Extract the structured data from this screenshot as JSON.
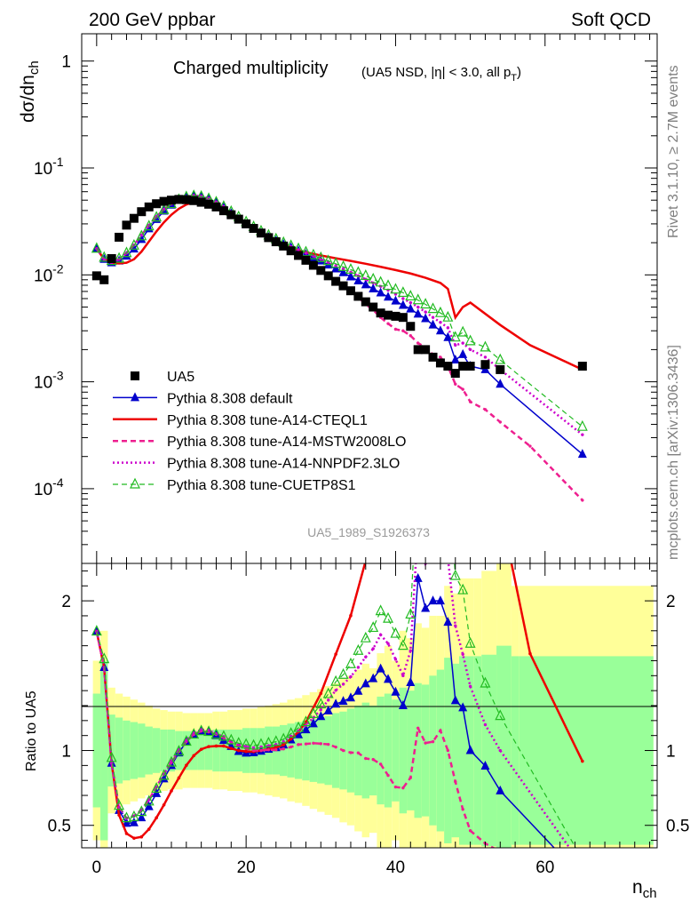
{
  "header": {
    "left": "200 GeV ppbar",
    "right": "Soft QCD"
  },
  "side_labels": {
    "rivet": "Rivet 3.1.10, ≥ 2.7M events",
    "mcplots": "mcplots.cern.ch [arXiv:1306.3436]"
  },
  "watermark": "UA5_1989_S1926373",
  "chart_data": [
    {
      "type": "scatter",
      "title": "Charged multiplicity",
      "subtitle": "(UA5 NSD, |η| < 3.0, all p_T)",
      "ylabel": "dσ/dn_ch",
      "xlabel": "n_ch",
      "xlim": [
        -2,
        75
      ],
      "ylim": [
        2e-05,
        1.8
      ],
      "yscale": "log",
      "x_ticks": [
        "0",
        "20",
        "40",
        "60"
      ],
      "y_ticks": [
        "10^-4",
        "10^-3",
        "10^-2",
        "10^-1",
        "1"
      ],
      "legend_position": "lower-left",
      "series": [
        {
          "name": "UA5",
          "marker": "filled-square",
          "color": "#000000",
          "x": [
            0,
            1,
            2,
            3,
            4,
            5,
            6,
            7,
            8,
            9,
            10,
            11,
            12,
            13,
            14,
            15,
            16,
            17,
            18,
            19,
            20,
            21,
            22,
            23,
            24,
            25,
            26,
            27,
            28,
            29,
            30,
            31,
            32,
            33,
            34,
            35,
            36,
            37,
            38,
            39,
            40,
            41,
            42,
            43,
            44,
            45,
            46,
            47,
            48,
            49,
            50,
            52,
            54,
            65
          ],
          "y": [
            0.0098,
            0.009,
            0.0142,
            0.0225,
            0.0292,
            0.0338,
            0.039,
            0.0432,
            0.0463,
            0.0487,
            0.05,
            0.0508,
            0.0505,
            0.0495,
            0.0478,
            0.0458,
            0.0432,
            0.0398,
            0.0365,
            0.0332,
            0.03,
            0.0272,
            0.0246,
            0.0223,
            0.0204,
            0.0186,
            0.0168,
            0.0152,
            0.0137,
            0.0123,
            0.011,
            0.0098,
            0.0087,
            0.0079,
            0.0071,
            0.0063,
            0.0056,
            0.005,
            0.0044,
            0.0042,
            0.0041,
            0.004,
            0.0033,
            0.002,
            0.002,
            0.0017,
            0.0015,
            0.0014,
            0.0012,
            0.0014,
            0.0014,
            0.00145,
            0.0013,
            0.0014
          ]
        },
        {
          "name": "Pythia 8.308 default",
          "marker": "filled-triangle",
          "color": "#0000cc",
          "x": [
            0,
            1,
            2,
            3,
            4,
            5,
            6,
            7,
            8,
            9,
            10,
            11,
            12,
            13,
            14,
            15,
            16,
            17,
            18,
            19,
            20,
            21,
            22,
            23,
            24,
            25,
            26,
            27,
            28,
            29,
            30,
            31,
            32,
            33,
            34,
            35,
            36,
            37,
            38,
            39,
            40,
            41,
            42,
            43,
            44,
            45,
            46,
            47,
            48,
            49,
            50,
            52,
            54,
            65
          ],
          "y": [
            0.0176,
            0.014,
            0.013,
            0.0135,
            0.015,
            0.0175,
            0.0215,
            0.027,
            0.033,
            0.0395,
            0.045,
            0.05,
            0.0535,
            0.0548,
            0.054,
            0.0515,
            0.0475,
            0.0425,
            0.0375,
            0.033,
            0.0295,
            0.0268,
            0.0245,
            0.0225,
            0.0208,
            0.0193,
            0.018,
            0.0168,
            0.0156,
            0.0145,
            0.0135,
            0.0124,
            0.0114,
            0.0105,
            0.0096,
            0.0088,
            0.0081,
            0.0074,
            0.0068,
            0.0062,
            0.0057,
            0.0052,
            0.0048,
            0.0043,
            0.0039,
            0.0034,
            0.003,
            0.0026,
            0.0016,
            0.0018,
            0.0014,
            0.0013,
            0.00095,
            0.00021
          ]
        },
        {
          "name": "Pythia 8.308 tune-A14-CTEQL1",
          "marker": "line",
          "color": "#ee0000",
          "x": [
            0,
            1,
            2,
            3,
            4,
            5,
            6,
            7,
            8,
            9,
            10,
            11,
            12,
            13,
            14,
            15,
            16,
            17,
            18,
            19,
            20,
            21,
            22,
            23,
            24,
            25,
            26,
            27,
            28,
            30,
            32,
            34,
            36,
            38,
            40,
            42,
            44,
            46,
            47,
            48,
            49,
            50,
            54,
            58,
            65
          ],
          "y": [
            0.0176,
            0.014,
            0.013,
            0.0128,
            0.013,
            0.014,
            0.0165,
            0.0205,
            0.0255,
            0.031,
            0.0365,
            0.0415,
            0.0455,
            0.0478,
            0.0482,
            0.047,
            0.0445,
            0.041,
            0.037,
            0.0332,
            0.0298,
            0.027,
            0.0246,
            0.0225,
            0.0208,
            0.0193,
            0.0181,
            0.0171,
            0.0163,
            0.0152,
            0.0143,
            0.0135,
            0.0127,
            0.0119,
            0.0111,
            0.0103,
            0.0094,
            0.0084,
            0.0074,
            0.004,
            0.005,
            0.0055,
            0.0034,
            0.0022,
            0.0013
          ]
        },
        {
          "name": "Pythia 8.308 tune-A14-MSTW2008LO",
          "marker": "dashed",
          "color": "#ee1f8f",
          "x": [
            0,
            1,
            2,
            3,
            4,
            5,
            6,
            7,
            8,
            9,
            10,
            11,
            12,
            13,
            14,
            15,
            16,
            17,
            18,
            19,
            20,
            21,
            22,
            23,
            24,
            25,
            26,
            27,
            28,
            29,
            30,
            31,
            32,
            33,
            34,
            35,
            36,
            37,
            38,
            39,
            40,
            41,
            42,
            43,
            44,
            45,
            46,
            47,
            48,
            49,
            50,
            52,
            54,
            58,
            65
          ],
          "y": [
            0.0176,
            0.014,
            0.013,
            0.014,
            0.016,
            0.019,
            0.0235,
            0.029,
            0.035,
            0.041,
            0.046,
            0.0505,
            0.0535,
            0.0548,
            0.054,
            0.0515,
            0.0478,
            0.0432,
            0.0385,
            0.0342,
            0.0304,
            0.0272,
            0.0246,
            0.0224,
            0.0205,
            0.0188,
            0.0172,
            0.0158,
            0.0143,
            0.0129,
            0.0115,
            0.0102,
            0.0089,
            0.0079,
            0.007,
            0.0062,
            0.0053,
            0.0047,
            0.004,
            0.0035,
            0.0031,
            0.003,
            0.0027,
            0.0023,
            0.0021,
            0.0018,
            0.0017,
            0.0014,
            0.00095,
            0.00085,
            0.00065,
            0.00055,
            0.00042,
            0.00025,
            7.8e-05
          ]
        },
        {
          "name": "Pythia 8.308 tune-A14-NNPDF2.3LO",
          "marker": "dotted",
          "color": "#cc00cc",
          "x": [
            0,
            1,
            2,
            3,
            4,
            5,
            6,
            7,
            8,
            9,
            10,
            11,
            12,
            13,
            14,
            15,
            16,
            17,
            18,
            19,
            20,
            21,
            22,
            23,
            24,
            25,
            26,
            27,
            28,
            29,
            30,
            31,
            32,
            33,
            34,
            35,
            36,
            37,
            38,
            39,
            40,
            41,
            42,
            43,
            44,
            45,
            46,
            47,
            48,
            49,
            50,
            52,
            54,
            65
          ],
          "y": [
            0.0176,
            0.014,
            0.013,
            0.014,
            0.016,
            0.019,
            0.0235,
            0.029,
            0.035,
            0.041,
            0.0465,
            0.051,
            0.054,
            0.0553,
            0.0545,
            0.052,
            0.048,
            0.0435,
            0.0388,
            0.0345,
            0.0308,
            0.0277,
            0.0252,
            0.023,
            0.0212,
            0.0197,
            0.0184,
            0.0172,
            0.016,
            0.015,
            0.014,
            0.0131,
            0.0122,
            0.0114,
            0.0106,
            0.0098,
            0.0091,
            0.0084,
            0.0078,
            0.0072,
            0.0066,
            0.006,
            0.0055,
            0.005,
            0.0045,
            0.004,
            0.0036,
            0.0032,
            0.0022,
            0.0023,
            0.002,
            0.0017,
            0.0013,
            0.00032
          ]
        },
        {
          "name": "Pythia 8.308 tune-CUETP8S1",
          "marker": "open-triangle",
          "color": "#22bb22",
          "x": [
            0,
            1,
            2,
            3,
            4,
            5,
            6,
            7,
            8,
            9,
            10,
            11,
            12,
            13,
            14,
            15,
            16,
            17,
            18,
            19,
            20,
            21,
            22,
            23,
            24,
            25,
            26,
            27,
            28,
            29,
            30,
            31,
            32,
            33,
            34,
            35,
            36,
            37,
            38,
            39,
            40,
            41,
            42,
            43,
            44,
            45,
            46,
            47,
            48,
            49,
            50,
            52,
            54,
            65
          ],
          "y": [
            0.0176,
            0.0145,
            0.0135,
            0.0142,
            0.016,
            0.0188,
            0.023,
            0.0285,
            0.0345,
            0.0405,
            0.046,
            0.0505,
            0.0535,
            0.0548,
            0.054,
            0.0515,
            0.0478,
            0.0435,
            0.039,
            0.0348,
            0.0312,
            0.0281,
            0.0256,
            0.0234,
            0.0216,
            0.02,
            0.0187,
            0.0175,
            0.0163,
            0.0153,
            0.0144,
            0.0135,
            0.0127,
            0.0119,
            0.0112,
            0.0105,
            0.0098,
            0.0091,
            0.0085,
            0.0079,
            0.0073,
            0.0068,
            0.0063,
            0.0058,
            0.0053,
            0.0048,
            0.0044,
            0.004,
            0.0026,
            0.0029,
            0.0024,
            0.0021,
            0.0016,
            0.00038
          ]
        }
      ]
    },
    {
      "type": "line",
      "ylabel": "Ratio to UA5",
      "xlabel": "n_ch",
      "xlim": [
        -2,
        75
      ],
      "ylim": [
        0.35,
        2.25
      ],
      "y_ticks": [
        "0.5",
        "1",
        "2"
      ],
      "x_ticks": [
        "0",
        "20",
        "40",
        "60"
      ],
      "bands": {
        "x": [
          -0.5,
          0.5,
          1.5,
          2.5,
          3.5,
          4.5,
          5.5,
          6.5,
          7.5,
          8.5,
          9.5,
          10.5,
          11.5,
          12.5,
          13.5,
          14.5,
          15.5,
          16.5,
          17.5,
          18.5,
          19.5,
          20.5,
          21.5,
          22.5,
          23.5,
          24.5,
          25.5,
          26.5,
          27.5,
          28.5,
          29.5,
          30.5,
          31.5,
          32.5,
          33.5,
          34.5,
          35.5,
          36.5,
          37.5,
          38.5,
          39.5,
          40.5,
          41.5,
          42.5,
          43.5,
          44.5,
          45.5,
          46.5,
          47.5,
          48.5,
          50.5,
          51.5,
          53.5,
          55.5,
          56.5,
          74.5
        ],
        "green_lo": [
          0.62,
          0.4,
          0.76,
          0.78,
          0.8,
          0.81,
          0.82,
          0.84,
          0.85,
          0.86,
          0.86,
          0.87,
          0.87,
          0.87,
          0.87,
          0.87,
          0.86,
          0.86,
          0.86,
          0.86,
          0.85,
          0.85,
          0.85,
          0.84,
          0.84,
          0.83,
          0.82,
          0.81,
          0.8,
          0.79,
          0.78,
          0.77,
          0.75,
          0.74,
          0.72,
          0.7,
          0.68,
          0.7,
          0.64,
          0.62,
          0.66,
          0.58,
          0.6,
          0.55,
          0.56,
          0.5,
          0.46,
          0.38,
          0.42,
          0.37,
          0.37,
          0.36,
          0.3,
          0.37,
          0.37
        ],
        "green_hi": [
          1.38,
          1.6,
          1.24,
          1.22,
          1.2,
          1.19,
          1.18,
          1.16,
          1.15,
          1.14,
          1.14,
          1.13,
          1.13,
          1.13,
          1.13,
          1.13,
          1.14,
          1.14,
          1.14,
          1.14,
          1.15,
          1.15,
          1.15,
          1.16,
          1.16,
          1.17,
          1.18,
          1.19,
          1.2,
          1.21,
          1.22,
          1.23,
          1.25,
          1.26,
          1.28,
          1.3,
          1.32,
          1.3,
          1.36,
          1.38,
          1.34,
          1.42,
          1.4,
          1.45,
          1.44,
          1.5,
          1.54,
          1.62,
          1.58,
          1.63,
          1.63,
          1.64,
          1.7,
          1.63,
          1.63
        ],
        "yellow_lo": [
          0.4,
          0.2,
          0.58,
          0.62,
          0.64,
          0.66,
          0.68,
          0.7,
          0.72,
          0.73,
          0.74,
          0.74,
          0.75,
          0.75,
          0.75,
          0.75,
          0.74,
          0.74,
          0.73,
          0.73,
          0.72,
          0.72,
          0.71,
          0.7,
          0.69,
          0.68,
          0.66,
          0.65,
          0.63,
          0.61,
          0.59,
          0.57,
          0.55,
          0.52,
          0.5,
          0.46,
          0.42,
          0.45,
          0.35,
          0.3,
          0.4,
          0.2,
          0.25,
          0.15,
          0.18,
          0.1,
          0.1,
          0.1,
          0.1,
          0.1,
          0.1,
          0.1,
          0.1,
          0.1,
          0.1
        ],
        "yellow_hi": [
          1.6,
          1.8,
          1.42,
          1.38,
          1.36,
          1.34,
          1.32,
          1.3,
          1.28,
          1.27,
          1.26,
          1.26,
          1.25,
          1.25,
          1.25,
          1.25,
          1.26,
          1.26,
          1.27,
          1.27,
          1.28,
          1.28,
          1.29,
          1.3,
          1.31,
          1.32,
          1.34,
          1.35,
          1.37,
          1.39,
          1.41,
          1.43,
          1.45,
          1.48,
          1.5,
          1.54,
          1.58,
          1.55,
          1.65,
          1.7,
          1.6,
          1.8,
          1.75,
          1.85,
          1.82,
          1.9,
          1.9,
          2.1,
          2.05,
          2.15,
          2.15,
          2.2,
          2.25,
          2.1,
          2.1
        ]
      }
    }
  ]
}
